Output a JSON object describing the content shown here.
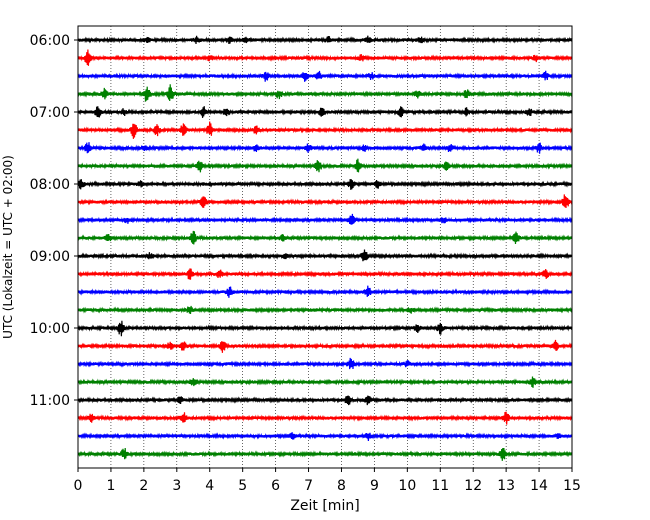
{
  "chart_data": {
    "type": "line",
    "title": "",
    "xlabel": "Zeit  [min]",
    "ylabel": "UTC (Lokalzeit = UTC + 02:00)",
    "xlim": [
      0,
      15
    ],
    "x_ticks": [
      "0",
      "1",
      "2",
      "3",
      "4",
      "5",
      "6",
      "7",
      "8",
      "9",
      "10",
      "11",
      "12",
      "13",
      "14",
      "15"
    ],
    "y_tick_labels": [
      "06:00",
      "07:00",
      "08:00",
      "09:00",
      "10:00",
      "11:00"
    ],
    "grid": "vertical-dotted",
    "traces_per_hour": 4,
    "trace_colors": [
      "#000000",
      "#ff0000",
      "#0000ff",
      "#008000"
    ],
    "traces": [
      {
        "start": "06:00",
        "events": [
          [
            2.1,
            0.25
          ],
          [
            3.6,
            0.3
          ],
          [
            4.6,
            0.35
          ],
          [
            5.1,
            0.25
          ],
          [
            7.6,
            0.3
          ],
          [
            8.8,
            0.35
          ],
          [
            10.4,
            0.25
          ]
        ]
      },
      {
        "start": "06:15",
        "events": [
          [
            0.3,
            0.8
          ],
          [
            4.0,
            0.25
          ],
          [
            8.6,
            0.3
          ],
          [
            13.9,
            0.3
          ]
        ]
      },
      {
        "start": "06:30",
        "events": [
          [
            5.7,
            0.5
          ],
          [
            6.9,
            0.5
          ],
          [
            7.3,
            0.5
          ],
          [
            8.9,
            0.3
          ],
          [
            14.2,
            0.4
          ]
        ]
      },
      {
        "start": "06:45",
        "events": [
          [
            0.8,
            0.5
          ],
          [
            2.1,
            1.0
          ],
          [
            2.8,
            1.0
          ],
          [
            6.1,
            0.5
          ],
          [
            10.3,
            0.4
          ],
          [
            11.8,
            0.4
          ]
        ]
      },
      {
        "start": "07:00",
        "events": [
          [
            0.6,
            0.7
          ],
          [
            1.4,
            0.3
          ],
          [
            3.8,
            0.6
          ],
          [
            4.5,
            0.5
          ],
          [
            7.4,
            0.4
          ],
          [
            9.8,
            0.5
          ],
          [
            11.8,
            0.4
          ],
          [
            13.7,
            0.4
          ]
        ]
      },
      {
        "start": "07:15",
        "events": [
          [
            1.7,
            0.9
          ],
          [
            2.4,
            0.6
          ],
          [
            3.2,
            0.7
          ],
          [
            4.0,
            0.8
          ],
          [
            5.4,
            0.4
          ]
        ]
      },
      {
        "start": "07:30",
        "events": [
          [
            0.3,
            0.6
          ],
          [
            2.0,
            0.3
          ],
          [
            5.4,
            0.3
          ],
          [
            7.0,
            0.4
          ],
          [
            8.7,
            0.3
          ],
          [
            10.5,
            0.4
          ],
          [
            11.3,
            0.4
          ],
          [
            14.0,
            0.5
          ]
        ]
      },
      {
        "start": "07:45",
        "events": [
          [
            3.7,
            0.6
          ],
          [
            7.3,
            0.7
          ],
          [
            8.5,
            0.7
          ],
          [
            11.2,
            0.5
          ]
        ]
      },
      {
        "start": "08:00",
        "events": [
          [
            0.1,
            0.5
          ],
          [
            1.9,
            0.3
          ],
          [
            8.3,
            0.5
          ],
          [
            9.1,
            0.4
          ]
        ]
      },
      {
        "start": "08:15",
        "events": [
          [
            3.8,
            0.8
          ],
          [
            14.8,
            0.9
          ]
        ]
      },
      {
        "start": "08:30",
        "events": [
          [
            1.5,
            0.3
          ],
          [
            8.3,
            0.6
          ],
          [
            11.1,
            0.3
          ]
        ]
      },
      {
        "start": "08:45",
        "events": [
          [
            0.9,
            0.5
          ],
          [
            3.5,
            0.7
          ],
          [
            6.2,
            0.3
          ],
          [
            13.3,
            0.6
          ]
        ]
      },
      {
        "start": "09:00",
        "events": [
          [
            2.2,
            0.3
          ],
          [
            6.3,
            0.3
          ],
          [
            8.7,
            0.7
          ]
        ]
      },
      {
        "start": "09:15",
        "events": [
          [
            3.4,
            0.6
          ],
          [
            4.3,
            0.4
          ],
          [
            14.2,
            0.5
          ]
        ]
      },
      {
        "start": "09:30",
        "events": [
          [
            4.6,
            0.5
          ],
          [
            8.8,
            0.6
          ]
        ]
      },
      {
        "start": "09:45",
        "events": [
          [
            3.4,
            0.4
          ],
          [
            10.1,
            0.3
          ]
        ]
      },
      {
        "start": "10:00",
        "events": [
          [
            1.3,
            0.8
          ],
          [
            10.3,
            0.4
          ],
          [
            11.0,
            0.6
          ]
        ]
      },
      {
        "start": "10:15",
        "events": [
          [
            2.8,
            0.4
          ],
          [
            3.2,
            0.5
          ],
          [
            4.4,
            0.6
          ],
          [
            14.5,
            0.6
          ]
        ]
      },
      {
        "start": "10:30",
        "events": [
          [
            8.3,
            0.6
          ],
          [
            10.0,
            0.3
          ]
        ]
      },
      {
        "start": "10:45",
        "events": [
          [
            3.5,
            0.5
          ],
          [
            13.8,
            0.5
          ]
        ]
      },
      {
        "start": "11:00",
        "events": [
          [
            3.1,
            0.3
          ],
          [
            8.2,
            0.5
          ],
          [
            8.8,
            0.5
          ]
        ]
      },
      {
        "start": "11:15",
        "events": [
          [
            0.4,
            0.4
          ],
          [
            3.2,
            0.6
          ],
          [
            13.0,
            0.6
          ]
        ]
      },
      {
        "start": "11:30",
        "events": [
          [
            6.5,
            0.3
          ],
          [
            8.8,
            0.4
          ],
          [
            14.6,
            0.3
          ]
        ]
      },
      {
        "start": "11:45",
        "events": [
          [
            1.4,
            0.6
          ],
          [
            12.9,
            0.7
          ]
        ]
      }
    ]
  }
}
